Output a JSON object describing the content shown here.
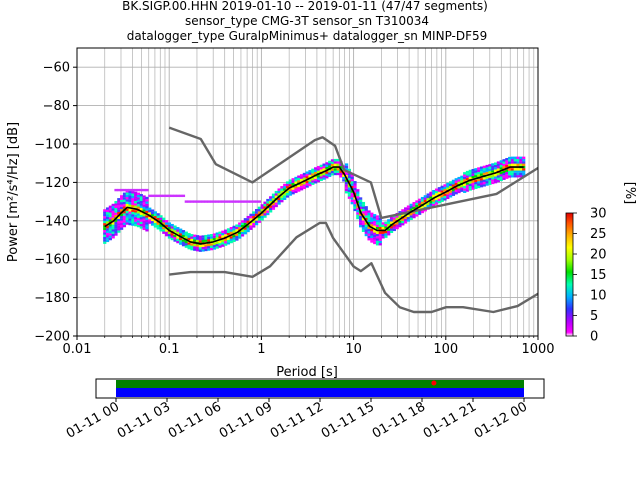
{
  "title": {
    "line1": "BK.SIGP.00.HHN   2019-01-10 -- 2019-01-11  (47/47 segments)",
    "line2": "sensor_type CMG-3T sensor_sn T310034",
    "line3": "datalogger_type GuralpMinimus+ datalogger_sn MINP-DF59"
  },
  "chart_data": [
    {
      "type": "line",
      "plot": "ppsd",
      "xlabel": "Period [s]",
      "ylabel": "Power [m²/s⁴/Hz] [dB]",
      "xscale": "log",
      "xlim": [
        0.01,
        1000
      ],
      "ylim": [
        -200,
        -50
      ],
      "grid": true,
      "xticks": [
        {
          "v": 0.01,
          "label": "0.01"
        },
        {
          "v": 0.1,
          "label": "0.1"
        },
        {
          "v": 1,
          "label": "1"
        },
        {
          "v": 10,
          "label": "10"
        },
        {
          "v": 100,
          "label": "100"
        },
        {
          "v": 1000,
          "label": "1000"
        }
      ],
      "yticks": [
        {
          "v": -60,
          "label": "−60"
        },
        {
          "v": -80,
          "label": "−80"
        },
        {
          "v": -100,
          "label": "−100"
        },
        {
          "v": -120,
          "label": "−120"
        },
        {
          "v": -140,
          "label": "−140"
        },
        {
          "v": -160,
          "label": "−160"
        },
        {
          "v": -180,
          "label": "−180"
        },
        {
          "v": -200,
          "label": "−200"
        }
      ],
      "series": [
        {
          "role": "nhnm",
          "color": "#666666",
          "x": [
            0.1,
            0.22,
            0.32,
            0.8,
            3.8,
            4.6,
            6.3,
            7.9,
            15.4,
            20,
            354.8,
            1000
          ],
          "y": [
            -91.5,
            -97.4,
            -110.5,
            -120,
            -98,
            -96.5,
            -101,
            -113.5,
            -120,
            -138.5,
            -126,
            -112.5
          ]
        },
        {
          "role": "nlnm",
          "color": "#666666",
          "x": [
            0.1,
            0.17,
            0.4,
            0.8,
            1.24,
            2.4,
            4.3,
            5,
            6,
            10,
            12,
            15.6,
            21.9,
            31.6,
            45,
            70,
            101,
            154,
            328,
            600,
            1000
          ],
          "y": [
            -168,
            -166.7,
            -166.7,
            -169.2,
            -163.7,
            -148.6,
            -141.1,
            -141.1,
            -149,
            -163.8,
            -166.2,
            -162.1,
            -177.5,
            -185,
            -187.5,
            -187.5,
            -185,
            -185,
            -187.5,
            -184.4,
            -178
          ]
        },
        {
          "role": "mode",
          "color": "#000000",
          "x": [
            0.02,
            0.025,
            0.03,
            0.035,
            0.045,
            0.06,
            0.08,
            0.1,
            0.13,
            0.17,
            0.22,
            0.3,
            0.4,
            0.55,
            0.75,
            1,
            1.5,
            2,
            3,
            4,
            5,
            6,
            7,
            8,
            10,
            12,
            15,
            18,
            22,
            26,
            30,
            40,
            55,
            75,
            100,
            130,
            180,
            250,
            350,
            500,
            700
          ],
          "y": [
            -143,
            -140,
            -136,
            -133,
            -134,
            -137,
            -141,
            -145,
            -148,
            -151,
            -152,
            -151,
            -149,
            -146,
            -141,
            -136,
            -128,
            -123,
            -119,
            -116,
            -114,
            -112,
            -112,
            -116,
            -125,
            -136,
            -143,
            -145,
            -145,
            -142,
            -140,
            -136,
            -132,
            -128,
            -125,
            -122,
            -119,
            -117,
            -115,
            -112,
            -112
          ]
        }
      ],
      "density": {
        "description": "probability density cells along the mode curve",
        "units": "%"
      }
    },
    {
      "type": "heatmap",
      "plot": "colorbar",
      "label": "[%]",
      "range": [
        0,
        30
      ],
      "ticks": [
        "0",
        "5",
        "10",
        "15",
        "20",
        "25",
        "30"
      ]
    },
    {
      "type": "bar",
      "plot": "data_availability",
      "xticks": [
        "01-11 00",
        "01-11 03",
        "01-11 06",
        "01-11 09",
        "01-11 12",
        "01-11 15",
        "01-11 18",
        "01-11 21",
        "01-12 00"
      ],
      "segments": [
        {
          "color": "#008000",
          "start_h": 0,
          "end_h": 24
        },
        {
          "color": "#0000ff",
          "start_h": 0,
          "end_h": 24
        }
      ],
      "marker_h": 18.7,
      "marker_color": "#ff0000"
    }
  ]
}
